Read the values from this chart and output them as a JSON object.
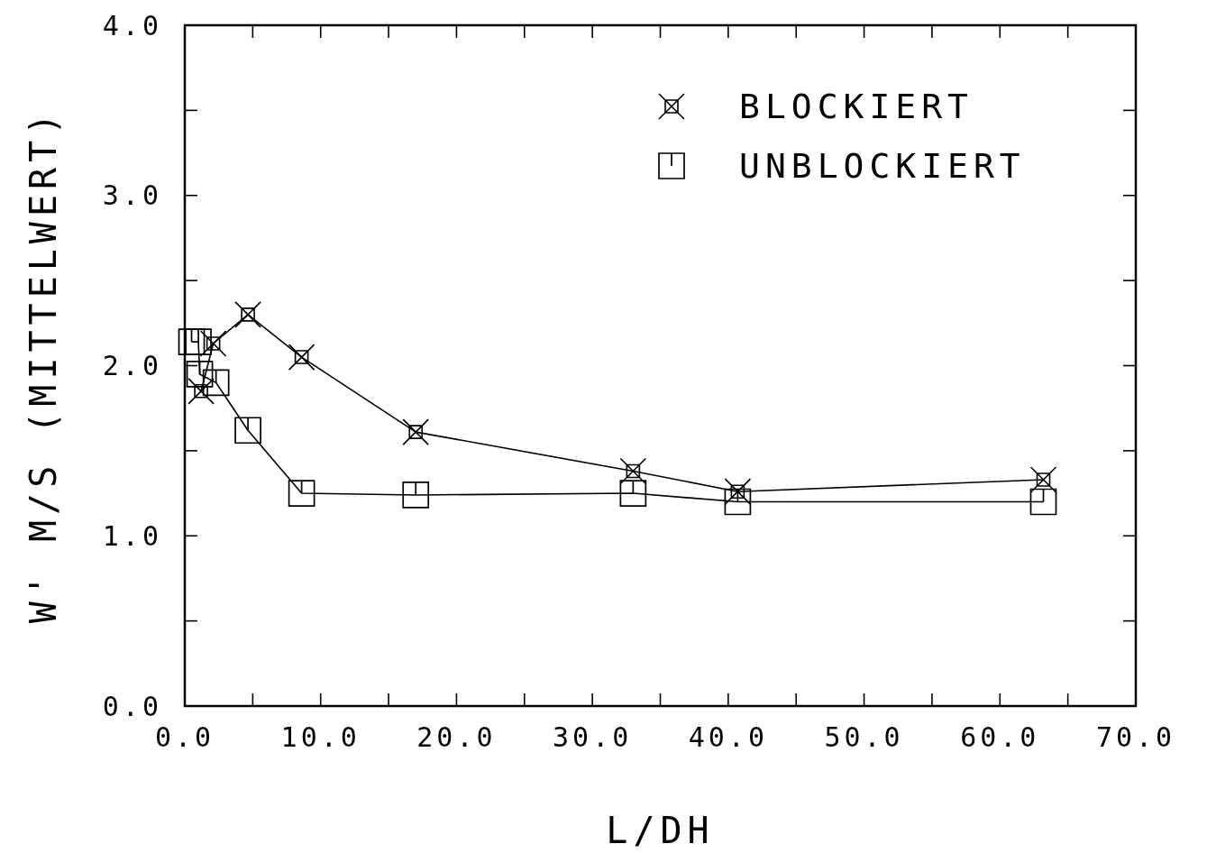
{
  "chart_data": {
    "type": "line",
    "xlabel": "L/DH",
    "ylabel": "W' M/S (MITTELWERT)",
    "xlim": [
      0,
      70
    ],
    "ylim": [
      0,
      4
    ],
    "xticks": [
      {
        "value": 0,
        "label": "0.0"
      },
      {
        "value": 5,
        "label": null
      },
      {
        "value": 10,
        "label": "10.0"
      },
      {
        "value": 15,
        "label": null
      },
      {
        "value": 20,
        "label": "20.0"
      },
      {
        "value": 25,
        "label": null
      },
      {
        "value": 30,
        "label": "30.0"
      },
      {
        "value": 35,
        "label": null
      },
      {
        "value": 40,
        "label": "40.0"
      },
      {
        "value": 45,
        "label": null
      },
      {
        "value": 50,
        "label": "50.0"
      },
      {
        "value": 55,
        "label": null
      },
      {
        "value": 60,
        "label": "60.0"
      },
      {
        "value": 65,
        "label": null
      },
      {
        "value": 70,
        "label": "70.0"
      }
    ],
    "yticks": [
      {
        "value": 0,
        "label": "0.0"
      },
      {
        "value": 0.5,
        "label": null
      },
      {
        "value": 1,
        "label": "1.0"
      },
      {
        "value": 1.5,
        "label": null
      },
      {
        "value": 2,
        "label": "2.0"
      },
      {
        "value": 2.5,
        "label": null
      },
      {
        "value": 3,
        "label": "3.0"
      },
      {
        "value": 3.5,
        "label": null
      },
      {
        "value": 4,
        "label": "4.0"
      }
    ],
    "grid": false,
    "legend": "top right",
    "line_style": "solid",
    "series": [
      {
        "name": "BLOCKIERT",
        "color": "#000000",
        "marker": "cross",
        "x": [
          1.2,
          2.1,
          4.65,
          8.6,
          17.0,
          33.0,
          40.7,
          63.2
        ],
        "values": [
          1.85,
          2.13,
          2.3,
          2.05,
          1.61,
          1.38,
          1.26,
          1.33
        ]
      },
      {
        "name": "UNBLOCKIERT",
        "color": "#000000",
        "marker": "square",
        "x": [
          0.5,
          1.0,
          1.1,
          2.3,
          4.65,
          8.6,
          17.0,
          33.0,
          40.7,
          63.2
        ],
        "values": [
          2.14,
          2.14,
          1.95,
          1.9,
          1.62,
          1.25,
          1.24,
          1.25,
          1.2,
          1.2
        ]
      }
    ]
  }
}
